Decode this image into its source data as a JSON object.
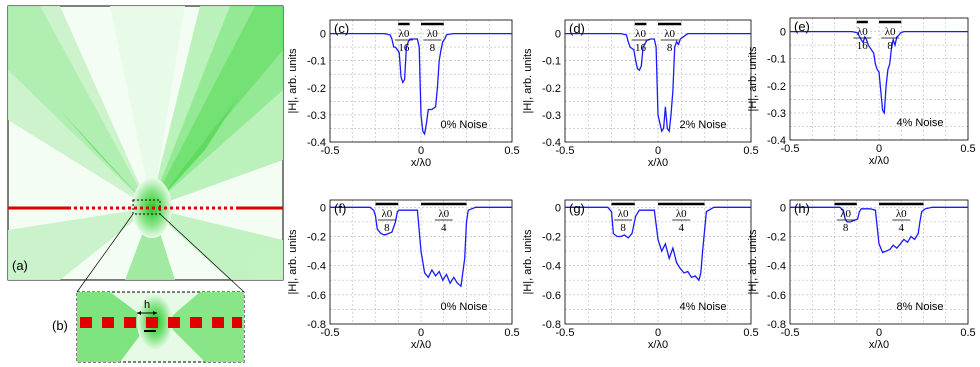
{
  "left_panels": {
    "a_label": "(a)",
    "b_label": "(b)",
    "b_h_label": "h"
  },
  "chart_data": [
    {
      "id": "c",
      "type": "line",
      "panel_label": "(c)",
      "noise_label": "0% Noise",
      "xlabel": "x/λ0",
      "ylabel": "|H|, arb. units",
      "xlim": [
        -0.5,
        0.5
      ],
      "ylim": [
        -0.4,
        0.05
      ],
      "xticks": [
        "-0.5",
        "0",
        "0.5"
      ],
      "yticks": [
        "0",
        "-0.05",
        "-0.1",
        "-0.15",
        "-0.2",
        "-0.25",
        "-0.3",
        "-0.35",
        "-0.4"
      ],
      "fractions": [
        {
          "num": "λ0",
          "den": "16",
          "x": -0.0938,
          "w": 0.0625
        },
        {
          "num": "λ0",
          "den": "8",
          "x": 0.0625,
          "w": 0.125
        }
      ],
      "series": [
        {
          "x": [
            -0.5,
            -0.2,
            -0.17,
            -0.16,
            -0.15,
            -0.14,
            -0.12,
            -0.11,
            -0.1,
            -0.09,
            -0.08,
            -0.07,
            -0.06,
            -0.04,
            -0.02,
            -0.01,
            0.0,
            0.01,
            0.02,
            0.03,
            0.04,
            0.06,
            0.08,
            0.09,
            0.1,
            0.11,
            0.12,
            0.13,
            0.14,
            0.15,
            0.16,
            0.18,
            0.5
          ],
          "y": [
            0,
            0,
            -0.005,
            -0.02,
            -0.05,
            -0.05,
            -0.07,
            -0.16,
            -0.18,
            -0.17,
            -0.05,
            -0.03,
            -0.02,
            -0.02,
            -0.02,
            -0.05,
            -0.3,
            -0.36,
            -0.37,
            -0.33,
            -0.28,
            -0.28,
            -0.27,
            -0.2,
            -0.1,
            -0.06,
            -0.03,
            -0.02,
            -0.005,
            -0.003,
            -0.002,
            0,
            0
          ]
        }
      ]
    },
    {
      "id": "d",
      "type": "line",
      "panel_label": "(d)",
      "noise_label": "2% Noise",
      "xlabel": "x/λ0",
      "ylabel": "|H|, arb. units",
      "xlim": [
        -0.5,
        0.5
      ],
      "ylim": [
        -0.4,
        0.05
      ],
      "xticks": [
        "-0.5",
        "0",
        "0.5"
      ],
      "yticks": [
        "0",
        "-0.05",
        "-0.1",
        "-0.15",
        "-0.2",
        "-0.25",
        "-0.3",
        "-0.35",
        "-0.4"
      ],
      "fractions": [
        {
          "num": "λ0",
          "den": "16",
          "x": -0.0938,
          "w": 0.0625
        },
        {
          "num": "λ0",
          "den": "8",
          "x": 0.0625,
          "w": 0.125
        }
      ],
      "series": [
        {
          "x": [
            -0.5,
            -0.2,
            -0.17,
            -0.16,
            -0.15,
            -0.13,
            -0.12,
            -0.11,
            -0.1,
            -0.09,
            -0.08,
            -0.06,
            -0.04,
            -0.02,
            -0.01,
            0.0,
            0.02,
            0.03,
            0.04,
            0.05,
            0.06,
            0.07,
            0.08,
            0.09,
            0.1,
            0.11,
            0.12,
            0.14,
            0.16,
            0.5
          ],
          "y": [
            0,
            0,
            -0.005,
            -0.03,
            -0.05,
            -0.06,
            -0.1,
            -0.13,
            -0.135,
            -0.12,
            -0.05,
            -0.025,
            -0.02,
            -0.02,
            -0.05,
            -0.3,
            -0.36,
            -0.35,
            -0.27,
            -0.35,
            -0.36,
            -0.3,
            -0.21,
            -0.05,
            -0.03,
            -0.04,
            -0.02,
            -0.01,
            0,
            0
          ]
        }
      ]
    },
    {
      "id": "e",
      "type": "line",
      "panel_label": "(e)",
      "noise_label": "4% Noise",
      "xlabel": "x/λ0",
      "ylabel": "|H|, arb. units",
      "xlim": [
        -0.5,
        0.5
      ],
      "ylim": [
        -0.4,
        0.05
      ],
      "xticks": [
        "-0.5",
        "0",
        "0.5"
      ],
      "yticks": [
        "0",
        "-0.05",
        "-0.1",
        "-0.15",
        "-0.2",
        "-0.25",
        "-0.3",
        "-0.35",
        "-0.4"
      ],
      "fractions": [
        {
          "num": "λ0",
          "den": "16",
          "x": -0.0938,
          "w": 0.0625
        },
        {
          "num": "λ0",
          "den": "8",
          "x": 0.0625,
          "w": 0.125
        }
      ],
      "series": [
        {
          "x": [
            -0.5,
            -0.15,
            -0.12,
            -0.1,
            -0.09,
            -0.08,
            -0.07,
            -0.06,
            -0.05,
            -0.04,
            -0.03,
            -0.02,
            -0.01,
            0.0,
            0.02,
            0.03,
            0.04,
            0.05,
            0.06,
            0.07,
            0.08,
            0.09,
            0.1,
            0.11,
            0.12,
            0.14,
            0.5
          ],
          "y": [
            0,
            0,
            -0.005,
            -0.03,
            -0.04,
            -0.02,
            -0.03,
            -0.05,
            -0.06,
            -0.07,
            -0.08,
            -0.12,
            -0.14,
            -0.15,
            -0.29,
            -0.3,
            -0.2,
            -0.14,
            -0.12,
            -0.06,
            -0.03,
            -0.05,
            -0.02,
            -0.015,
            -0.005,
            0,
            0
          ]
        }
      ]
    },
    {
      "id": "f",
      "type": "line",
      "panel_label": "(f)",
      "noise_label": "0% Noise",
      "xlabel": "x/λ0",
      "ylabel": "|H|, arb. units",
      "xlim": [
        -0.5,
        0.5
      ],
      "ylim": [
        -0.8,
        0.05
      ],
      "xticks": [
        "-0.5",
        "0",
        "0.5"
      ],
      "yticks": [
        "0",
        "-0.1",
        "-0.2",
        "-0.3",
        "-0.4",
        "-0.5",
        "-0.6",
        "-0.7",
        "-0.8"
      ],
      "fractions": [
        {
          "num": "λ0",
          "den": "8",
          "x": -0.1875,
          "w": 0.125
        },
        {
          "num": "λ0",
          "den": "4",
          "x": 0.125,
          "w": 0.25
        }
      ],
      "series": [
        {
          "x": [
            -0.5,
            -0.28,
            -0.26,
            -0.25,
            -0.24,
            -0.22,
            -0.2,
            -0.18,
            -0.16,
            -0.14,
            -0.13,
            -0.12,
            -0.1,
            -0.05,
            -0.02,
            0.0,
            0.02,
            0.04,
            0.06,
            0.08,
            0.1,
            0.12,
            0.14,
            0.16,
            0.18,
            0.2,
            0.22,
            0.24,
            0.25,
            0.26,
            0.3,
            0.5
          ],
          "y": [
            0,
            0,
            -0.02,
            -0.06,
            -0.15,
            -0.18,
            -0.19,
            -0.18,
            -0.17,
            -0.1,
            -0.03,
            -0.02,
            -0.02,
            -0.02,
            -0.02,
            -0.3,
            -0.45,
            -0.48,
            -0.43,
            -0.47,
            -0.44,
            -0.5,
            -0.46,
            -0.52,
            -0.48,
            -0.52,
            -0.54,
            -0.35,
            -0.1,
            -0.02,
            0,
            0
          ]
        }
      ]
    },
    {
      "id": "g",
      "type": "line",
      "panel_label": "(g)",
      "noise_label": "4% Noise",
      "xlabel": "x/λ0",
      "ylabel": "|H|, arb. units",
      "xlim": [
        -0.5,
        0.5
      ],
      "ylim": [
        -0.8,
        0.05
      ],
      "xticks": [
        "-0.5",
        "0",
        "0.5"
      ],
      "yticks": [
        "0",
        "-0.1",
        "-0.2",
        "-0.3",
        "-0.4",
        "-0.5",
        "-0.6",
        "-0.7",
        "-0.8"
      ],
      "fractions": [
        {
          "num": "λ0",
          "den": "8",
          "x": -0.1875,
          "w": 0.125
        },
        {
          "num": "λ0",
          "den": "4",
          "x": 0.125,
          "w": 0.25
        }
      ],
      "series": [
        {
          "x": [
            -0.5,
            -0.27,
            -0.25,
            -0.24,
            -0.22,
            -0.2,
            -0.18,
            -0.16,
            -0.14,
            -0.12,
            -0.1,
            -0.05,
            -0.02,
            0.0,
            0.02,
            0.04,
            0.06,
            0.08,
            0.1,
            0.12,
            0.14,
            0.16,
            0.18,
            0.2,
            0.22,
            0.23,
            0.24,
            0.26,
            0.3,
            0.5
          ],
          "y": [
            0,
            0,
            -0.03,
            -0.18,
            -0.2,
            -0.2,
            -0.19,
            -0.21,
            -0.18,
            -0.06,
            -0.02,
            -0.02,
            -0.02,
            -0.22,
            -0.3,
            -0.25,
            -0.35,
            -0.28,
            -0.38,
            -0.42,
            -0.45,
            -0.44,
            -0.48,
            -0.47,
            -0.5,
            -0.45,
            -0.3,
            -0.03,
            0,
            0
          ]
        }
      ]
    },
    {
      "id": "h",
      "type": "line",
      "panel_label": "(h)",
      "noise_label": "8% Noise",
      "xlabel": "x/λ0",
      "ylabel": "|H|, arb. units",
      "xlim": [
        -0.5,
        0.5
      ],
      "ylim": [
        -0.8,
        0.05
      ],
      "xticks": [
        "-0.5",
        "0",
        "0.5"
      ],
      "yticks": [
        "0",
        "-0.1",
        "-0.2",
        "-0.3",
        "-0.4",
        "-0.5",
        "-0.6",
        "-0.7",
        "-0.8"
      ],
      "fractions": [
        {
          "num": "λ0",
          "den": "8",
          "x": -0.1875,
          "w": 0.125
        },
        {
          "num": "λ0",
          "den": "4",
          "x": 0.125,
          "w": 0.25
        }
      ],
      "series": [
        {
          "x": [
            -0.5,
            -0.22,
            -0.2,
            -0.19,
            -0.18,
            -0.16,
            -0.14,
            -0.12,
            -0.11,
            -0.1,
            -0.05,
            -0.02,
            0.0,
            0.02,
            0.04,
            0.06,
            0.08,
            0.1,
            0.12,
            0.14,
            0.16,
            0.18,
            0.2,
            0.22,
            0.23,
            0.24,
            0.26,
            0.3,
            0.5
          ],
          "y": [
            0,
            0,
            -0.02,
            -0.08,
            -0.1,
            -0.1,
            -0.09,
            -0.08,
            -0.03,
            -0.01,
            -0.01,
            -0.02,
            -0.25,
            -0.31,
            -0.3,
            -0.29,
            -0.26,
            -0.28,
            -0.25,
            -0.22,
            -0.24,
            -0.2,
            -0.22,
            -0.18,
            -0.1,
            -0.03,
            -0.01,
            0,
            0
          ]
        }
      ]
    }
  ]
}
